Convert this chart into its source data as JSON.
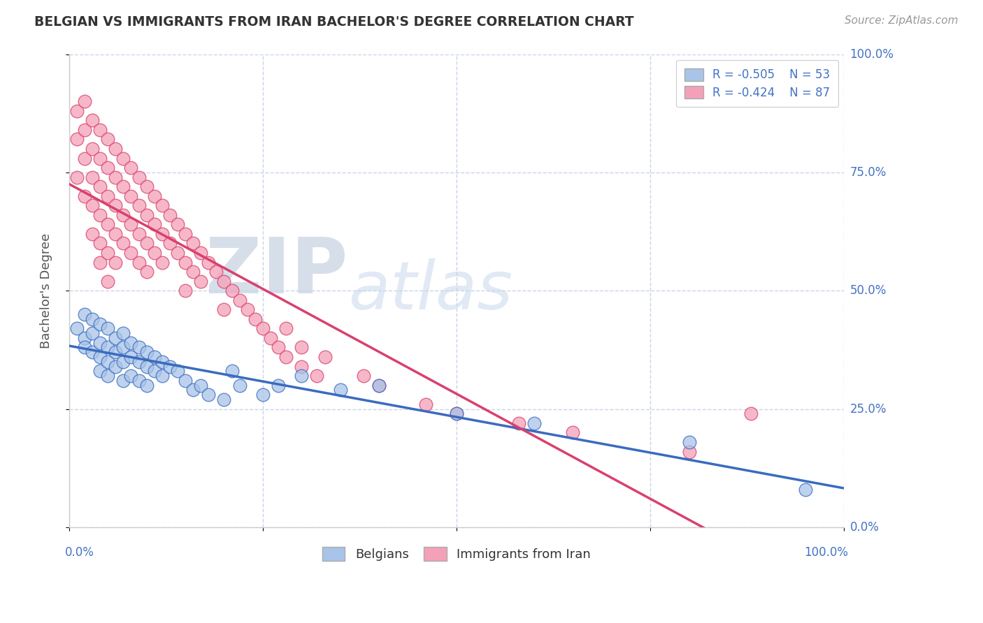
{
  "title": "BELGIAN VS IMMIGRANTS FROM IRAN BACHELOR'S DEGREE CORRELATION CHART",
  "source_text": "Source: ZipAtlas.com",
  "ylabel": "Bachelor's Degree",
  "belgians_color": "#a8c4e8",
  "iran_color": "#f4a0b8",
  "belgians_line_color": "#3a6bbf",
  "iran_line_color": "#d9406e",
  "title_color": "#333333",
  "label_color": "#4472c4",
  "watermark_zip_color": "#c0cfe8",
  "watermark_atlas_color": "#b8d0e8",
  "background_color": "#ffffff",
  "grid_color": "#c8d4e8",
  "ytick_labels": [
    "0.0%",
    "25.0%",
    "50.0%",
    "75.0%",
    "100.0%"
  ],
  "ytick_values": [
    0.0,
    0.25,
    0.5,
    0.75,
    1.0
  ],
  "belgians_x": [
    0.01,
    0.02,
    0.02,
    0.02,
    0.03,
    0.03,
    0.03,
    0.04,
    0.04,
    0.04,
    0.04,
    0.05,
    0.05,
    0.05,
    0.05,
    0.06,
    0.06,
    0.06,
    0.07,
    0.07,
    0.07,
    0.07,
    0.08,
    0.08,
    0.08,
    0.09,
    0.09,
    0.09,
    0.1,
    0.1,
    0.1,
    0.11,
    0.11,
    0.12,
    0.12,
    0.13,
    0.14,
    0.15,
    0.16,
    0.17,
    0.18,
    0.2,
    0.21,
    0.22,
    0.25,
    0.27,
    0.3,
    0.35,
    0.4,
    0.5,
    0.6,
    0.8,
    0.95
  ],
  "belgians_y": [
    0.42,
    0.45,
    0.4,
    0.38,
    0.44,
    0.41,
    0.37,
    0.43,
    0.39,
    0.36,
    0.33,
    0.42,
    0.38,
    0.35,
    0.32,
    0.4,
    0.37,
    0.34,
    0.41,
    0.38,
    0.35,
    0.31,
    0.39,
    0.36,
    0.32,
    0.38,
    0.35,
    0.31,
    0.37,
    0.34,
    0.3,
    0.36,
    0.33,
    0.35,
    0.32,
    0.34,
    0.33,
    0.31,
    0.29,
    0.3,
    0.28,
    0.27,
    0.33,
    0.3,
    0.28,
    0.3,
    0.32,
    0.29,
    0.3,
    0.24,
    0.22,
    0.18,
    0.08
  ],
  "iran_x": [
    0.01,
    0.01,
    0.01,
    0.02,
    0.02,
    0.02,
    0.02,
    0.03,
    0.03,
    0.03,
    0.03,
    0.03,
    0.04,
    0.04,
    0.04,
    0.04,
    0.04,
    0.04,
    0.05,
    0.05,
    0.05,
    0.05,
    0.05,
    0.05,
    0.06,
    0.06,
    0.06,
    0.06,
    0.06,
    0.07,
    0.07,
    0.07,
    0.07,
    0.08,
    0.08,
    0.08,
    0.08,
    0.09,
    0.09,
    0.09,
    0.09,
    0.1,
    0.1,
    0.1,
    0.1,
    0.11,
    0.11,
    0.11,
    0.12,
    0.12,
    0.12,
    0.13,
    0.13,
    0.14,
    0.14,
    0.15,
    0.15,
    0.15,
    0.16,
    0.16,
    0.17,
    0.17,
    0.18,
    0.19,
    0.2,
    0.2,
    0.21,
    0.22,
    0.23,
    0.24,
    0.25,
    0.26,
    0.27,
    0.28,
    0.28,
    0.3,
    0.3,
    0.32,
    0.33,
    0.38,
    0.4,
    0.46,
    0.5,
    0.58,
    0.65,
    0.8,
    0.88
  ],
  "iran_y": [
    0.88,
    0.82,
    0.74,
    0.9,
    0.84,
    0.78,
    0.7,
    0.86,
    0.8,
    0.74,
    0.68,
    0.62,
    0.84,
    0.78,
    0.72,
    0.66,
    0.6,
    0.56,
    0.82,
    0.76,
    0.7,
    0.64,
    0.58,
    0.52,
    0.8,
    0.74,
    0.68,
    0.62,
    0.56,
    0.78,
    0.72,
    0.66,
    0.6,
    0.76,
    0.7,
    0.64,
    0.58,
    0.74,
    0.68,
    0.62,
    0.56,
    0.72,
    0.66,
    0.6,
    0.54,
    0.7,
    0.64,
    0.58,
    0.68,
    0.62,
    0.56,
    0.66,
    0.6,
    0.64,
    0.58,
    0.62,
    0.56,
    0.5,
    0.6,
    0.54,
    0.58,
    0.52,
    0.56,
    0.54,
    0.52,
    0.46,
    0.5,
    0.48,
    0.46,
    0.44,
    0.42,
    0.4,
    0.38,
    0.36,
    0.42,
    0.38,
    0.34,
    0.32,
    0.36,
    0.32,
    0.3,
    0.26,
    0.24,
    0.22,
    0.2,
    0.16,
    0.24
  ]
}
